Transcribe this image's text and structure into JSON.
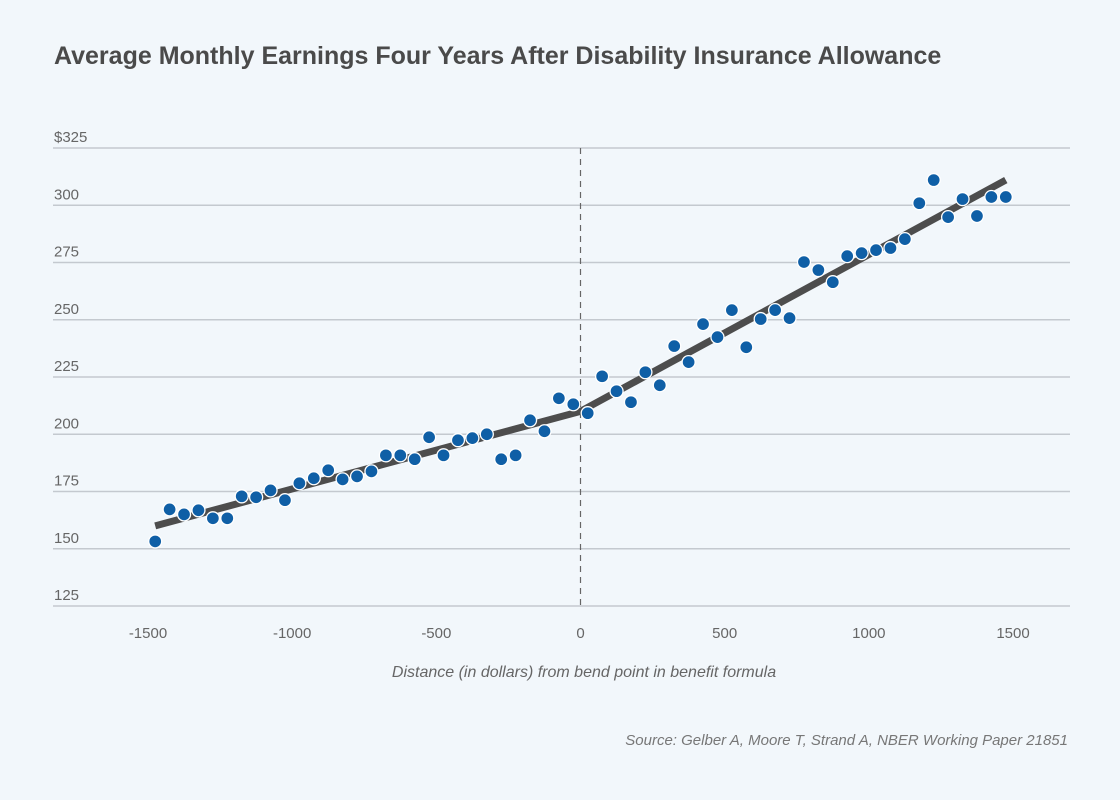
{
  "chart_data": {
    "type": "scatter",
    "title": "Average Monthly Earnings Four Years After Disability Insurance Allowance",
    "xlabel": "Distance (in dollars) from bend point in benefit formula",
    "ylabel": "",
    "source": "Source: Gelber A, Moore T, Strand A, NBER Working Paper 21851",
    "xlim": [
      -1750,
      1750
    ],
    "ylim": [
      125,
      325
    ],
    "xticks": [
      -1500,
      -1000,
      -500,
      0,
      500,
      1000,
      1500
    ],
    "xtick_labels": [
      "-1500",
      "-1000",
      "-500",
      "0",
      "500",
      "1000",
      "1500"
    ],
    "yticks": [
      125,
      150,
      175,
      200,
      225,
      250,
      275,
      300,
      325
    ],
    "ytick_labels": [
      "125",
      "150",
      "175",
      "200",
      "225",
      "250",
      "275",
      "300",
      "$325"
    ],
    "grid": "horizontal",
    "vertical_reference_line": 0,
    "colors": {
      "points": "#0f5fa6",
      "fit_line": "#4d4d4d",
      "grid": "#c4c9cf"
    },
    "points": {
      "x": [
        -1475,
        -1425,
        -1375,
        -1325,
        -1275,
        -1225,
        -1175,
        -1125,
        -1075,
        -1025,
        -975,
        -925,
        -875,
        -825,
        -775,
        -725,
        -675,
        -625,
        -575,
        -525,
        -475,
        -425,
        -375,
        -325,
        -275,
        -225,
        -175,
        -125,
        -75,
        -25,
        25,
        75,
        125,
        175,
        225,
        275,
        325,
        375,
        425,
        475,
        525,
        575,
        625,
        675,
        725,
        775,
        825,
        875,
        925,
        975,
        1025,
        1075,
        1125,
        1175,
        1225,
        1275,
        1325,
        1375,
        1425,
        1475
      ],
      "y": [
        153.2,
        167.2,
        165,
        166.8,
        163.3,
        163.3,
        172.9,
        172.5,
        175.5,
        171.2,
        178.6,
        180.8,
        184.3,
        180.3,
        181.6,
        183.8,
        190.8,
        190.8,
        189.1,
        198.7,
        190.8,
        197.4,
        198.3,
        200,
        189.1,
        190.8,
        206.1,
        201.3,
        215.7,
        213.1,
        209.2,
        225.3,
        218.8,
        214,
        227.1,
        221.4,
        238.5,
        231.5,
        248.1,
        242.4,
        254.2,
        238,
        250.3,
        254.2,
        250.7,
        275.2,
        271.7,
        266.4,
        277.8,
        279.1,
        280.4,
        281.3,
        285.2,
        300.9,
        311,
        294.8,
        302.7,
        295.3,
        303.6,
        303.6
      ]
    },
    "fit_line": {
      "x": [
        -1475,
        0,
        1475
      ],
      "y": [
        160,
        210,
        311
      ]
    }
  }
}
